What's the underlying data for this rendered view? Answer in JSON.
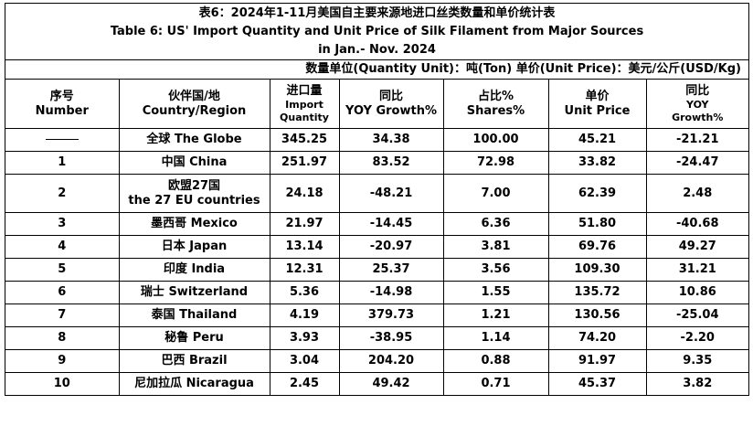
{
  "title": {
    "cn": "表6：2024年1-11月美国自主要来源地进口丝类数量和单价统计表",
    "en1": "Table 6: US' Import Quantity and Unit Price of Silk Filament from Major Sources",
    "en2": "in Jan.- Nov. 2024"
  },
  "units": "数量单位(Quantity Unit)：吨(Ton)   单价(Unit Price)：美元/公斤(USD/Kg)",
  "headers": {
    "no": {
      "cn": "序号",
      "en": "Number"
    },
    "partner": {
      "cn": "伙伴国/地",
      "en": "Country/Region"
    },
    "qty": {
      "cn": "进口量",
      "en1": "Import",
      "en2": "Quantity"
    },
    "yoy": {
      "cn": "同比",
      "en": "YOY Growth%"
    },
    "share": {
      "cn": "占比%",
      "en": "Shares%"
    },
    "price": {
      "cn": "单价",
      "en": "Unit Price"
    },
    "price_yoy": {
      "cn": "同比",
      "en1": "YOY",
      "en2": "Growth%"
    }
  },
  "rows": [
    {
      "no": "",
      "partner": "全球 The Globe",
      "qty": "345.25",
      "yoy": "34.38",
      "share": "100.00",
      "price": "45.21",
      "price_yoy": "-21.21"
    },
    {
      "no": "1",
      "partner": "中国 China",
      "qty": "251.97",
      "yoy": "83.52",
      "share": "72.98",
      "price": "33.82",
      "price_yoy": "-24.47"
    },
    {
      "no": "2",
      "partner": "欧盟27国",
      "partner2": "the 27 EU countries",
      "qty": "24.18",
      "yoy": "-48.21",
      "share": "7.00",
      "price": "62.39",
      "price_yoy": "2.48"
    },
    {
      "no": "3",
      "partner": "墨西哥 Mexico",
      "qty": "21.97",
      "yoy": "-14.45",
      "share": "6.36",
      "price": "51.80",
      "price_yoy": "-40.68"
    },
    {
      "no": "4",
      "partner": "日本 Japan",
      "qty": "13.14",
      "yoy": "-20.97",
      "share": "3.81",
      "price": "69.76",
      "price_yoy": "49.27"
    },
    {
      "no": "5",
      "partner": "印度 India",
      "qty": "12.31",
      "yoy": "25.37",
      "share": "3.56",
      "price": "109.30",
      "price_yoy": "31.21"
    },
    {
      "no": "6",
      "partner": "瑞士 Switzerland",
      "qty": "5.36",
      "yoy": "-14.98",
      "share": "1.55",
      "price": "135.72",
      "price_yoy": "10.86"
    },
    {
      "no": "7",
      "partner": "泰国 Thailand",
      "qty": "4.19",
      "yoy": "379.73",
      "share": "1.21",
      "price": "130.56",
      "price_yoy": "-25.04"
    },
    {
      "no": "8",
      "partner": "秘鲁 Peru",
      "qty": "3.93",
      "yoy": "-38.95",
      "share": "1.14",
      "price": "74.20",
      "price_yoy": "-2.20"
    },
    {
      "no": "9",
      "partner": "巴西 Brazil",
      "qty": "3.04",
      "yoy": "204.20",
      "share": "0.88",
      "price": "91.97",
      "price_yoy": "9.35"
    },
    {
      "no": "10",
      "partner": "尼加拉瓜 Nicaragua",
      "qty": "2.45",
      "yoy": "49.42",
      "share": "0.71",
      "price": "45.37",
      "price_yoy": "3.82"
    }
  ]
}
